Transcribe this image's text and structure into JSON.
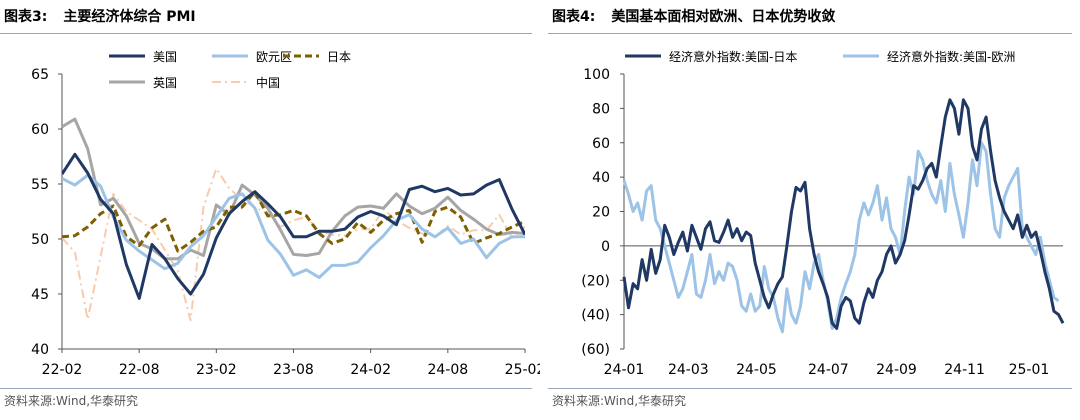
{
  "left": {
    "title_num": "图表3:",
    "title_text": "主要经济体综合 PMI",
    "source": "资料来源:Wind,华泰研究",
    "chart_data": {
      "type": "line",
      "x_ticks": [
        "22-02",
        "22-08",
        "23-02",
        "23-08",
        "24-02",
        "24-08",
        "25-02"
      ],
      "ylim": [
        40,
        65
      ],
      "y_ticks": [
        40,
        45,
        50,
        55,
        60,
        65
      ],
      "grid": false,
      "legend": "top",
      "x": [
        "22-02",
        "22-03",
        "22-04",
        "22-05",
        "22-06",
        "22-07",
        "22-08",
        "22-09",
        "22-10",
        "22-11",
        "22-12",
        "23-01",
        "23-02",
        "23-03",
        "23-04",
        "23-05",
        "23-06",
        "23-07",
        "23-08",
        "23-09",
        "23-10",
        "23-11",
        "23-12",
        "24-01",
        "24-02",
        "24-03",
        "24-04",
        "24-05",
        "24-06",
        "24-07",
        "24-08",
        "24-09",
        "24-10",
        "24-11",
        "24-12",
        "25-01",
        "25-02"
      ],
      "series": [
        {
          "name": "美国",
          "color": "#1f3864",
          "dash": "solid",
          "width": 3,
          "values": [
            55.9,
            57.7,
            56.0,
            53.6,
            52.3,
            47.7,
            44.6,
            49.5,
            48.2,
            46.4,
            45.0,
            46.8,
            50.1,
            52.3,
            53.4,
            54.3,
            53.2,
            52.0,
            50.2,
            50.2,
            50.7,
            50.7,
            50.9,
            52.0,
            52.5,
            52.1,
            51.3,
            54.5,
            54.8,
            54.3,
            54.6,
            54.0,
            54.1,
            54.9,
            55.4,
            52.7,
            50.4
          ]
        },
        {
          "name": "欧元区",
          "color": "#9dc3e6",
          "dash": "solid",
          "width": 3,
          "values": [
            55.5,
            54.9,
            55.8,
            54.8,
            52.0,
            49.9,
            48.9,
            48.1,
            47.3,
            47.8,
            49.3,
            50.3,
            52.0,
            53.7,
            54.1,
            52.8,
            49.9,
            48.6,
            46.7,
            47.2,
            46.5,
            47.6,
            47.6,
            47.9,
            49.2,
            50.3,
            51.7,
            52.2,
            50.9,
            50.2,
            51.0,
            49.6,
            50.0,
            48.3,
            49.6,
            50.2,
            50.2
          ]
        },
        {
          "name": "日本",
          "color": "#7f6000",
          "dash": "dashed",
          "width": 3,
          "values": [
            50.2,
            50.3,
            51.1,
            52.3,
            53.0,
            50.2,
            49.4,
            51.0,
            51.8,
            48.9,
            49.7,
            50.7,
            51.1,
            52.9,
            52.9,
            54.3,
            52.1,
            52.2,
            52.6,
            52.1,
            50.5,
            49.6,
            50.0,
            51.5,
            50.6,
            51.7,
            52.3,
            52.6,
            49.7,
            52.5,
            52.9,
            52.0,
            49.6,
            50.1,
            50.5,
            51.1,
            51.6
          ]
        },
        {
          "name": "英国",
          "color": "#a6a6a6",
          "dash": "solid",
          "width": 3,
          "values": [
            60.2,
            60.9,
            58.2,
            53.1,
            53.7,
            52.1,
            49.6,
            49.1,
            48.2,
            48.2,
            49.0,
            48.5,
            53.1,
            52.2,
            54.9,
            54.0,
            52.8,
            50.8,
            48.6,
            48.5,
            48.7,
            50.7,
            52.1,
            52.9,
            53.0,
            52.8,
            54.1,
            53.0,
            52.3,
            52.8,
            53.8,
            52.6,
            51.8,
            50.9,
            50.4,
            50.6,
            50.5
          ]
        },
        {
          "name": "中国",
          "color": "#f8cbad",
          "dash": "dashdot",
          "width": 2,
          "values": [
            50.1,
            48.8,
            42.7,
            48.4,
            54.1,
            52.5,
            51.7,
            50.9,
            49.0,
            47.1,
            42.6,
            52.9,
            56.4,
            54.6,
            53.6,
            52.9,
            52.3,
            51.1,
            51.7,
            52.0,
            50.7,
            50.4,
            50.3,
            50.9,
            50.9,
            52.7,
            51.7,
            51.0,
            50.5,
            50.2,
            51.2,
            50.4,
            50.8,
            50.8,
            52.2,
            50.1,
            51.1
          ]
        }
      ]
    }
  },
  "right": {
    "title_num": "图表4:",
    "title_text": "美国基本面相对欧洲、日本优势收敛",
    "source": "资料来源:Wind,华泰研究",
    "chart_data": {
      "type": "line",
      "x_ticks": [
        "24-01",
        "24-03",
        "24-05",
        "24-07",
        "24-09",
        "24-11",
        "25-01"
      ],
      "ylim": [
        -60,
        100
      ],
      "y_ticks": [
        100,
        80,
        60,
        40,
        20,
        0,
        -20,
        -40,
        -60
      ],
      "y_tick_labels": [
        "100",
        "80",
        "60",
        "40",
        "20",
        "0",
        "(20)",
        "(40)",
        "(60)"
      ],
      "grid": false,
      "legend": "top",
      "series": [
        {
          "name": "经济意外指数:美国-日本",
          "color": "#1f3864",
          "width": 3,
          "points": [
            [
              0,
              -18
            ],
            [
              1,
              -36
            ],
            [
              2,
              -22
            ],
            [
              3,
              -25
            ],
            [
              4,
              -8
            ],
            [
              5,
              -20
            ],
            [
              6,
              -2
            ],
            [
              7,
              -16
            ],
            [
              8,
              -8
            ],
            [
              9,
              12
            ],
            [
              10,
              5
            ],
            [
              11,
              -5
            ],
            [
              12,
              2
            ],
            [
              13,
              8
            ],
            [
              14,
              -3
            ],
            [
              15,
              12
            ],
            [
              16,
              5
            ],
            [
              17,
              -2
            ],
            [
              18,
              10
            ],
            [
              19,
              14
            ],
            [
              20,
              3
            ],
            [
              21,
              2
            ],
            [
              22,
              8
            ],
            [
              23,
              15
            ],
            [
              24,
              5
            ],
            [
              25,
              10
            ],
            [
              26,
              3
            ],
            [
              27,
              8
            ],
            [
              28,
              6
            ],
            [
              29,
              -10
            ],
            [
              30,
              -20
            ],
            [
              31,
              -30
            ],
            [
              32,
              -36
            ],
            [
              33,
              -28
            ],
            [
              34,
              -22
            ],
            [
              35,
              -18
            ],
            [
              36,
              0
            ],
            [
              37,
              20
            ],
            [
              38,
              34
            ],
            [
              39,
              32
            ],
            [
              40,
              37
            ],
            [
              41,
              10
            ],
            [
              42,
              -5
            ],
            [
              43,
              -15
            ],
            [
              44,
              -22
            ],
            [
              45,
              -30
            ],
            [
              46,
              -45
            ],
            [
              47,
              -48
            ],
            [
              48,
              -35
            ],
            [
              49,
              -30
            ],
            [
              50,
              -32
            ],
            [
              51,
              -42
            ],
            [
              52,
              -45
            ],
            [
              53,
              -33
            ],
            [
              54,
              -25
            ],
            [
              55,
              -30
            ],
            [
              56,
              -20
            ],
            [
              57,
              -15
            ],
            [
              58,
              -5
            ],
            [
              59,
              0
            ],
            [
              60,
              -10
            ],
            [
              61,
              -5
            ],
            [
              62,
              3
            ],
            [
              63,
              18
            ],
            [
              64,
              35
            ],
            [
              65,
              33
            ],
            [
              66,
              38
            ],
            [
              67,
              45
            ],
            [
              68,
              48
            ],
            [
              69,
              40
            ],
            [
              70,
              58
            ],
            [
              71,
              75
            ],
            [
              72,
              85
            ],
            [
              73,
              80
            ],
            [
              74,
              65
            ],
            [
              75,
              85
            ],
            [
              76,
              80
            ],
            [
              77,
              58
            ],
            [
              78,
              50
            ],
            [
              79,
              68
            ],
            [
              80,
              75
            ],
            [
              81,
              55
            ],
            [
              82,
              38
            ],
            [
              83,
              28
            ],
            [
              84,
              20
            ],
            [
              85,
              15
            ],
            [
              86,
              10
            ],
            [
              87,
              18
            ],
            [
              88,
              5
            ],
            [
              89,
              12
            ],
            [
              90,
              5
            ],
            [
              91,
              8
            ],
            [
              92,
              -3
            ],
            [
              93,
              -15
            ],
            [
              94,
              -25
            ],
            [
              95,
              -38
            ],
            [
              96,
              -40
            ],
            [
              97,
              -45
            ]
          ]
        },
        {
          "name": "经济意外指数:美国-欧洲",
          "color": "#9dc3e6",
          "width": 3,
          "points": [
            [
              0,
              38
            ],
            [
              1,
              30
            ],
            [
              2,
              20
            ],
            [
              3,
              25
            ],
            [
              4,
              15
            ],
            [
              5,
              32
            ],
            [
              6,
              35
            ],
            [
              7,
              15
            ],
            [
              8,
              10
            ],
            [
              9,
              0
            ],
            [
              10,
              -10
            ],
            [
              11,
              -20
            ],
            [
              12,
              -30
            ],
            [
              13,
              -25
            ],
            [
              14,
              -15
            ],
            [
              15,
              -5
            ],
            [
              16,
              -28
            ],
            [
              17,
              -30
            ],
            [
              18,
              -20
            ],
            [
              19,
              -5
            ],
            [
              20,
              -22
            ],
            [
              21,
              -15
            ],
            [
              22,
              -20
            ],
            [
              23,
              -10
            ],
            [
              24,
              -12
            ],
            [
              25,
              -20
            ],
            [
              26,
              -35
            ],
            [
              27,
              -38
            ],
            [
              28,
              -28
            ],
            [
              29,
              -38
            ],
            [
              30,
              -35
            ],
            [
              31,
              -12
            ],
            [
              32,
              -25
            ],
            [
              33,
              -30
            ],
            [
              34,
              -42
            ],
            [
              35,
              -50
            ],
            [
              36,
              -25
            ],
            [
              37,
              -40
            ],
            [
              38,
              -45
            ],
            [
              39,
              -35
            ],
            [
              40,
              -15
            ],
            [
              41,
              -25
            ],
            [
              42,
              -10
            ],
            [
              43,
              -5
            ],
            [
              44,
              -20
            ],
            [
              45,
              -32
            ],
            [
              46,
              -48
            ],
            [
              47,
              -42
            ],
            [
              48,
              -30
            ],
            [
              49,
              -22
            ],
            [
              50,
              -15
            ],
            [
              51,
              -5
            ],
            [
              52,
              15
            ],
            [
              53,
              25
            ],
            [
              54,
              18
            ],
            [
              55,
              25
            ],
            [
              56,
              35
            ],
            [
              57,
              15
            ],
            [
              58,
              28
            ],
            [
              59,
              10
            ],
            [
              60,
              5
            ],
            [
              61,
              -5
            ],
            [
              62,
              20
            ],
            [
              63,
              40
            ],
            [
              64,
              30
            ],
            [
              65,
              55
            ],
            [
              66,
              50
            ],
            [
              67,
              38
            ],
            [
              68,
              30
            ],
            [
              69,
              25
            ],
            [
              70,
              38
            ],
            [
              71,
              20
            ],
            [
              72,
              48
            ],
            [
              73,
              30
            ],
            [
              74,
              18
            ],
            [
              75,
              5
            ],
            [
              76,
              25
            ],
            [
              77,
              50
            ],
            [
              78,
              35
            ],
            [
              79,
              60
            ],
            [
              80,
              55
            ],
            [
              81,
              30
            ],
            [
              82,
              10
            ],
            [
              83,
              5
            ],
            [
              84,
              28
            ],
            [
              85,
              35
            ],
            [
              86,
              40
            ],
            [
              87,
              45
            ],
            [
              88,
              10
            ],
            [
              89,
              5
            ],
            [
              90,
              0
            ],
            [
              91,
              -5
            ],
            [
              92,
              5
            ],
            [
              93,
              -10
            ],
            [
              94,
              -20
            ],
            [
              95,
              -30
            ],
            [
              96,
              -32
            ]
          ]
        }
      ]
    }
  }
}
